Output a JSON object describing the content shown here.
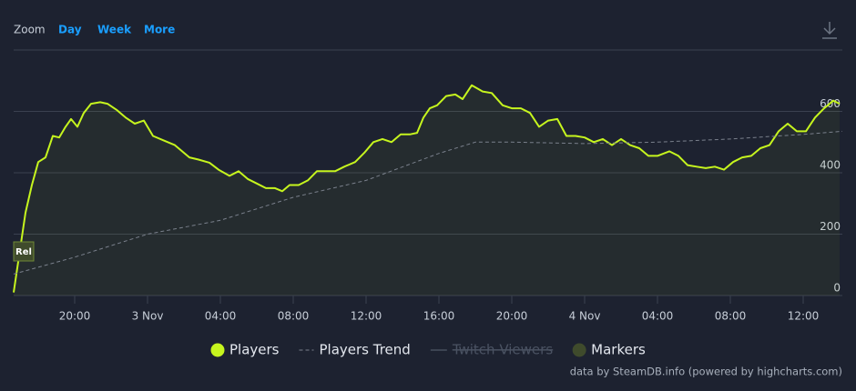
{
  "ui": {
    "zoom_label": "Zoom",
    "zoom_buttons": [
      "Day",
      "Week",
      "More"
    ],
    "credit": "data by SteamDB.info (powered by highcharts.com)"
  },
  "chart_data": {
    "type": "line",
    "xlim": [
      16.65,
      62.15
    ],
    "xticks": [
      {
        "value": 20,
        "label": "20:00"
      },
      {
        "value": 24,
        "label": "3 Nov"
      },
      {
        "value": 28,
        "label": "04:00"
      },
      {
        "value": 32,
        "label": "08:00"
      },
      {
        "value": 36,
        "label": "12:00"
      },
      {
        "value": 40,
        "label": "16:00"
      },
      {
        "value": 44,
        "label": "20:00"
      },
      {
        "value": 48,
        "label": "4 Nov"
      },
      {
        "value": 52,
        "label": "04:00"
      },
      {
        "value": 56,
        "label": "08:00"
      },
      {
        "value": 60,
        "label": "12:00"
      }
    ],
    "ylim": [
      0,
      800
    ],
    "yticks": [
      0,
      200,
      400,
      600
    ],
    "grid": true,
    "series": [
      {
        "name": "Players",
        "color": "#c6f51e",
        "fill": true,
        "x": [
          16.65,
          17.3,
          17.65,
          18.0,
          18.4,
          18.8,
          19.15,
          19.5,
          19.8,
          20.15,
          20.5,
          20.9,
          21.4,
          21.8,
          22.3,
          22.8,
          23.3,
          23.8,
          24.3,
          24.9,
          25.5,
          25.9,
          26.3,
          26.8,
          27.4,
          27.9,
          28.5,
          29.0,
          29.5,
          30.0,
          30.5,
          31.0,
          31.4,
          31.8,
          32.3,
          32.8,
          33.3,
          33.8,
          34.3,
          34.8,
          35.4,
          35.9,
          36.4,
          36.9,
          37.4,
          37.9,
          38.4,
          38.8,
          39.15,
          39.5,
          39.9,
          40.4,
          40.9,
          41.3,
          41.8,
          42.4,
          42.9,
          43.5,
          44.0,
          44.5,
          45.0,
          45.5,
          46.0,
          46.5,
          47.0,
          47.5,
          48.0,
          48.5,
          49.0,
          49.5,
          50.0,
          50.5,
          51.0,
          51.5,
          52.0,
          52.65,
          53.15,
          53.65,
          54.15,
          54.65,
          55.15,
          55.65,
          56.15,
          56.65,
          57.15,
          57.65,
          58.15,
          58.65,
          59.15,
          59.65,
          60.15,
          60.65,
          61.15,
          61.65,
          62.0
        ],
        "values": [
          10,
          270,
          360,
          435,
          450,
          520,
          515,
          550,
          575,
          550,
          595,
          625,
          630,
          625,
          605,
          580,
          560,
          570,
          520,
          505,
          490,
          470,
          450,
          443,
          433,
          410,
          390,
          405,
          380,
          365,
          350,
          350,
          340,
          360,
          360,
          375,
          405,
          405,
          405,
          420,
          435,
          465,
          500,
          510,
          500,
          525,
          525,
          530,
          580,
          610,
          620,
          650,
          655,
          640,
          685,
          665,
          660,
          620,
          610,
          610,
          595,
          550,
          570,
          575,
          520,
          520,
          515,
          500,
          510,
          490,
          510,
          490,
          480,
          455,
          455,
          470,
          455,
          425,
          420,
          415,
          420,
          410,
          435,
          450,
          455,
          480,
          490,
          535,
          560,
          535,
          535,
          580,
          610,
          635,
          625
        ]
      },
      {
        "name": "Players Trend",
        "color": "#7a808c",
        "dashed": true,
        "x": [
          16.65,
          20,
          24,
          28,
          32,
          36,
          40,
          42,
          44,
          48,
          52,
          56,
          60,
          62.15
        ],
        "values": [
          70,
          125,
          200,
          245,
          320,
          375,
          463,
          500,
          500,
          495,
          500,
          510,
          525,
          535
        ]
      },
      {
        "name": "Twitch Viewers",
        "color": "#3c4452",
        "hidden": true
      },
      {
        "name": "Markers",
        "color": "#3f4b2c",
        "markers": [
          {
            "x": 17.2,
            "label": "Rel"
          }
        ]
      }
    ]
  }
}
